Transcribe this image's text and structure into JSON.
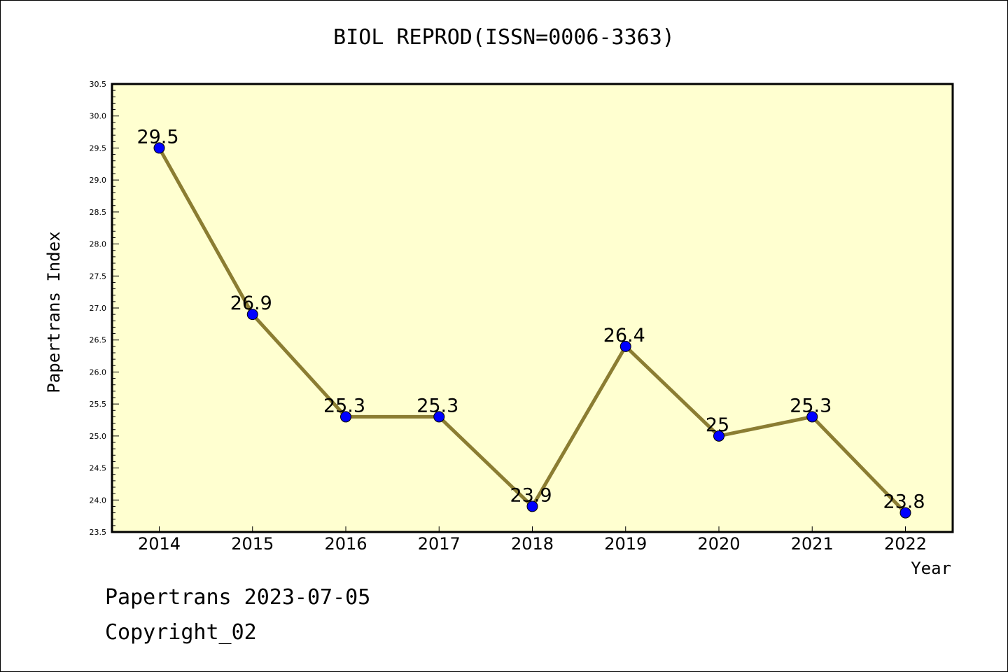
{
  "chart_data": {
    "type": "line",
    "title": "BIOL REPROD(ISSN=0006-3363)",
    "xlabel": "Year",
    "ylabel": "Papertrans Index",
    "categories": [
      "2014",
      "2015",
      "2016",
      "2017",
      "2018",
      "2019",
      "2020",
      "2021",
      "2022"
    ],
    "series": [
      {
        "values": [
          29.5,
          26.9,
          25.3,
          25.3,
          23.9,
          26.4,
          25.0,
          25.3,
          23.8
        ],
        "labels": [
          "29.5",
          "26.9",
          "25.3",
          "25.3",
          "23.9",
          "26.4",
          "25",
          "25.3",
          "23.8"
        ]
      }
    ],
    "ylim": [
      23.5,
      30.5
    ],
    "yticks": [
      "23.5",
      "24.0",
      "24.5",
      "25.0",
      "25.5",
      "26.0",
      "26.5",
      "27.0",
      "27.5",
      "28.0",
      "28.5",
      "29.0",
      "29.5",
      "30.0",
      "30.5"
    ],
    "grid": false,
    "colors": {
      "plot_background": "#ffffd0",
      "line": "#8b7d32",
      "marker": "#0000ff"
    }
  },
  "footer": {
    "line1": "Papertrans 2023-07-05",
    "line2": "Copyright_02"
  }
}
